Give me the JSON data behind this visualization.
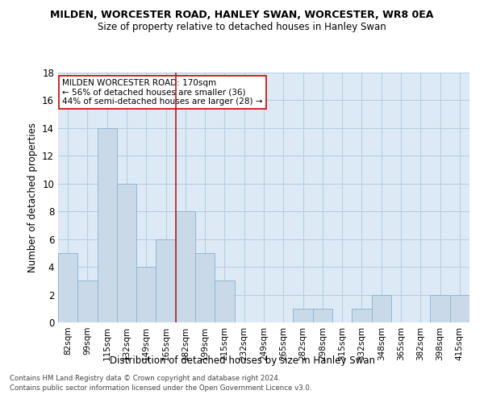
{
  "title1": "MILDEN, WORCESTER ROAD, HANLEY SWAN, WORCESTER, WR8 0EA",
  "title2": "Size of property relative to detached houses in Hanley Swan",
  "xlabel": "Distribution of detached houses by size in Hanley Swan",
  "ylabel": "Number of detached properties",
  "categories": [
    "82sqm",
    "99sqm",
    "115sqm",
    "132sqm",
    "149sqm",
    "165sqm",
    "182sqm",
    "199sqm",
    "215sqm",
    "232sqm",
    "249sqm",
    "265sqm",
    "282sqm",
    "298sqm",
    "315sqm",
    "332sqm",
    "348sqm",
    "365sqm",
    "382sqm",
    "398sqm",
    "415sqm"
  ],
  "values": [
    5,
    3,
    14,
    10,
    4,
    6,
    8,
    5,
    3,
    0,
    0,
    0,
    1,
    1,
    0,
    1,
    2,
    0,
    0,
    2,
    2
  ],
  "bar_color": "#c9d9e8",
  "bar_edge_color": "#8fb8d8",
  "grid_color": "#b8cfe0",
  "vline_x": 6.0,
  "vline_color": "#aa2222",
  "annotation_text": "MILDEN WORCESTER ROAD: 170sqm\n← 56% of detached houses are smaller (36)\n44% of semi-detached houses are larger (28) →",
  "annotation_box_color": "#ffffff",
  "annotation_box_edge": "#cc0000",
  "ylim": [
    0,
    18
  ],
  "yticks": [
    0,
    2,
    4,
    6,
    8,
    10,
    12,
    14,
    16,
    18
  ],
  "footer1": "Contains HM Land Registry data © Crown copyright and database right 2024.",
  "footer2": "Contains public sector information licensed under the Open Government Licence v3.0.",
  "bg_color": "#ddeaf5",
  "fig_width": 6.0,
  "fig_height": 5.0,
  "dpi": 100
}
